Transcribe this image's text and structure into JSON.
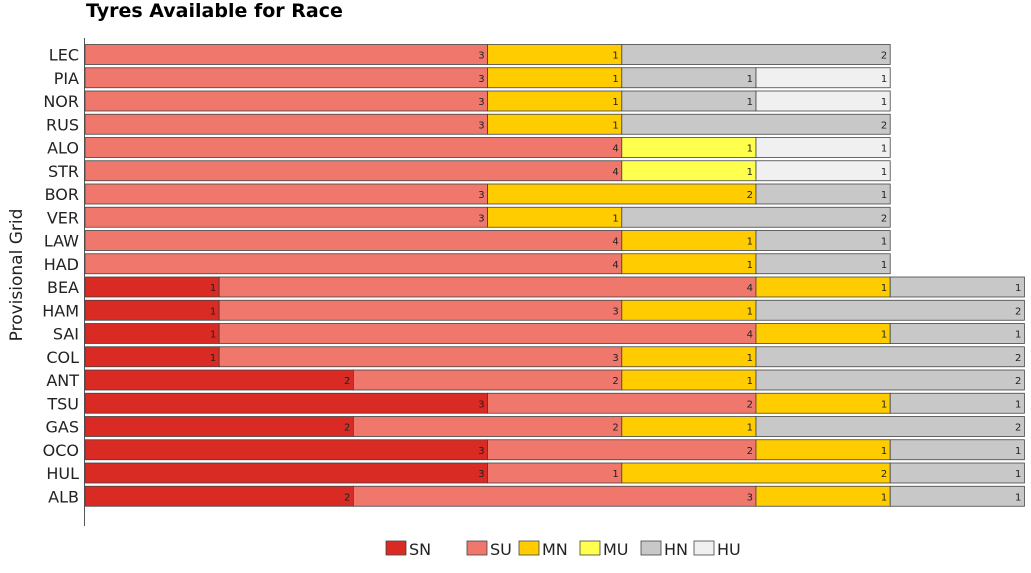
{
  "chart_data": {
    "type": "bar",
    "orientation": "horizontal",
    "stacked": true,
    "title": "Tyres Available for Race",
    "ylabel": "Provisional Grid",
    "xlabel": "",
    "grid": false,
    "legend_position": "bottom",
    "categories": [
      "LEC",
      "PIA",
      "NOR",
      "RUS",
      "ALO",
      "STR",
      "BOR",
      "VER",
      "LAW",
      "HAD",
      "BEA",
      "HAM",
      "SAI",
      "COL",
      "ANT",
      "TSU",
      "GAS",
      "OCO",
      "HUL",
      "ALB"
    ],
    "series": [
      {
        "name": "SN",
        "color": "#d92b24",
        "values": [
          0,
          0,
          0,
          0,
          0,
          0,
          0,
          0,
          0,
          0,
          1,
          1,
          1,
          1,
          2,
          3,
          2,
          3,
          3,
          2
        ]
      },
      {
        "name": "SU",
        "color": "#f0776b",
        "values": [
          3,
          3,
          3,
          3,
          4,
          4,
          3,
          3,
          4,
          4,
          4,
          3,
          4,
          3,
          2,
          2,
          2,
          2,
          1,
          3
        ]
      },
      {
        "name": "MN",
        "color": "#ffcc00",
        "values": [
          1,
          1,
          1,
          1,
          0,
          0,
          2,
          1,
          1,
          1,
          1,
          1,
          1,
          1,
          1,
          1,
          1,
          1,
          2,
          1
        ]
      },
      {
        "name": "MU",
        "color": "#ffff4d",
        "values": [
          0,
          0,
          0,
          0,
          1,
          1,
          0,
          0,
          0,
          0,
          0,
          0,
          0,
          0,
          0,
          0,
          0,
          0,
          0,
          0
        ]
      },
      {
        "name": "HN",
        "color": "#c8c8c8",
        "values": [
          2,
          1,
          1,
          2,
          0,
          0,
          1,
          2,
          1,
          1,
          1,
          2,
          1,
          2,
          2,
          1,
          2,
          1,
          1,
          1
        ]
      },
      {
        "name": "HU",
        "color": "#f0f0f0",
        "values": [
          0,
          1,
          1,
          0,
          1,
          1,
          0,
          0,
          0,
          0,
          0,
          0,
          0,
          0,
          0,
          0,
          0,
          0,
          0,
          0
        ]
      }
    ]
  }
}
